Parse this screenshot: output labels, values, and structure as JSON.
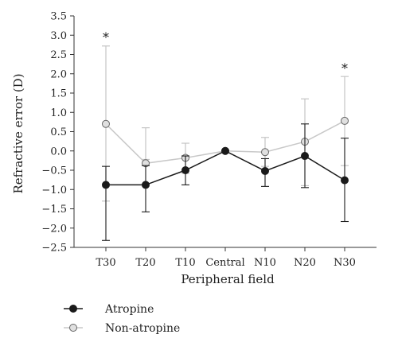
{
  "chart_data": {
    "type": "line",
    "categories": [
      "T30",
      "T20",
      "T10",
      "Central",
      "N10",
      "N20",
      "N30"
    ],
    "xlabel": "Peripheral field",
    "ylabel": "Refractive error (D)",
    "ylim": [
      -2.5,
      3.5
    ],
    "yticks": [
      "3.5",
      "3.0",
      "2.5",
      "2.0",
      "1.5",
      "1.0",
      "0.5",
      "0.0",
      "−0.5",
      "−1.0",
      "−1.5",
      "−2.0",
      "−2.5"
    ],
    "grid": false,
    "legend_position": "bottom-left",
    "series": [
      {
        "name": "Atropine",
        "color": "#1a1a1a",
        "marker_fill": "#1a1a1a",
        "values": [
          -0.88,
          -0.88,
          -0.5,
          0.0,
          -0.52,
          -0.13,
          -0.76
        ],
        "error_upper": [
          -0.4,
          -0.38,
          -0.13,
          0.0,
          -0.2,
          0.7,
          0.33
        ],
        "error_lower": [
          -2.32,
          -1.58,
          -0.88,
          0.0,
          -0.92,
          -0.95,
          -1.83
        ]
      },
      {
        "name": "Non-atropine",
        "color": "#c8c8c8",
        "marker_fill": "#e0e0e0",
        "values": [
          0.7,
          -0.32,
          -0.18,
          0.0,
          -0.03,
          0.24,
          0.78
        ],
        "error_upper": [
          2.72,
          0.6,
          0.2,
          0.0,
          0.35,
          1.35,
          1.93
        ],
        "error_lower": [
          -1.3,
          -0.22,
          -0.58,
          0.0,
          -0.4,
          -0.9,
          -0.38
        ]
      }
    ],
    "annotations": [
      {
        "text": "*",
        "category": "T30",
        "y": 2.95
      },
      {
        "text": "*",
        "category": "N30",
        "y": 2.15
      }
    ]
  }
}
